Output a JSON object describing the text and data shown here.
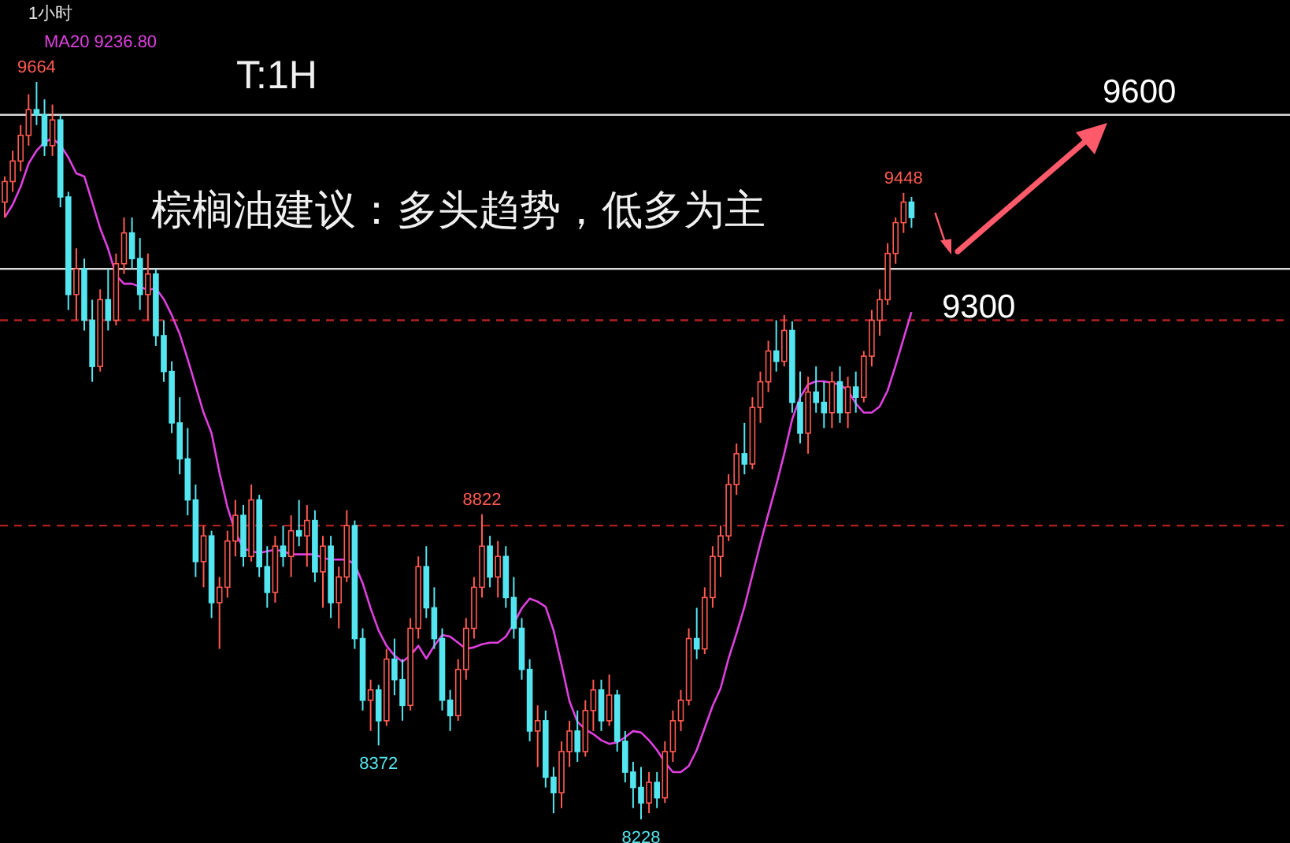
{
  "chart_data": {
    "type": "candlestick",
    "title": "T:1H",
    "subtitle": "棕榈油建议：多头趋势，低多为主",
    "categories": [
      null,
      null,
      null,
      null,
      null,
      null,
      null,
      null,
      null,
      null,
      null,
      null,
      null,
      null,
      null,
      null,
      null,
      null,
      null,
      null,
      null,
      null,
      null,
      null,
      null,
      null,
      null,
      null,
      null,
      null,
      null,
      null,
      null,
      null,
      null,
      null,
      null,
      null,
      null,
      null,
      null,
      null,
      null,
      null,
      null,
      null,
      null,
      null,
      null,
      null,
      null,
      null,
      null,
      null,
      null,
      null,
      null,
      null,
      null,
      null,
      null,
      null,
      null,
      null,
      null,
      null,
      null,
      null,
      null,
      null,
      null,
      null,
      null,
      null,
      null,
      null,
      null,
      null,
      null,
      null,
      null,
      null,
      null,
      null,
      null,
      null,
      null,
      null,
      null,
      null,
      null,
      null,
      null,
      null,
      null,
      null,
      null,
      null,
      null,
      null,
      null,
      null,
      null,
      null,
      null,
      null,
      null,
      null,
      null,
      null,
      null,
      null,
      null,
      null,
      null
    ],
    "ohlc": [
      [
        9430,
        9480,
        9400,
        9470
      ],
      [
        9470,
        9530,
        9450,
        9510
      ],
      [
        9510,
        9580,
        9490,
        9560
      ],
      [
        9560,
        9640,
        9540,
        9610
      ],
      [
        9610,
        9664,
        9580,
        9600
      ],
      [
        9600,
        9630,
        9520,
        9540
      ],
      [
        9540,
        9620,
        9520,
        9590
      ],
      [
        9590,
        9600,
        9420,
        9440
      ],
      [
        9440,
        9450,
        9220,
        9250
      ],
      [
        9250,
        9340,
        9200,
        9300
      ],
      [
        9300,
        9320,
        9180,
        9200
      ],
      [
        9200,
        9240,
        9080,
        9110
      ],
      [
        9110,
        9260,
        9100,
        9240
      ],
      [
        9240,
        9300,
        9180,
        9200
      ],
      [
        9200,
        9330,
        9190,
        9310
      ],
      [
        9310,
        9400,
        9290,
        9370
      ],
      [
        9370,
        9400,
        9300,
        9320
      ],
      [
        9320,
        9360,
        9220,
        9250
      ],
      [
        9250,
        9330,
        9200,
        9290
      ],
      [
        9290,
        9300,
        9150,
        9170
      ],
      [
        9170,
        9200,
        9080,
        9100
      ],
      [
        9100,
        9120,
        8980,
        9000
      ],
      [
        9000,
        9050,
        8900,
        8930
      ],
      [
        8930,
        8990,
        8820,
        8850
      ],
      [
        8850,
        8880,
        8700,
        8730
      ],
      [
        8730,
        8800,
        8680,
        8780
      ],
      [
        8780,
        8790,
        8620,
        8650
      ],
      [
        8650,
        8700,
        8560,
        8680
      ],
      [
        8680,
        8790,
        8660,
        8770
      ],
      [
        8770,
        8850,
        8740,
        8820
      ],
      [
        8820,
        8840,
        8720,
        8740
      ],
      [
        8740,
        8880,
        8730,
        8850
      ],
      [
        8850,
        8860,
        8700,
        8720
      ],
      [
        8720,
        8760,
        8640,
        8670
      ],
      [
        8670,
        8780,
        8650,
        8760
      ],
      [
        8760,
        8800,
        8720,
        8740
      ],
      [
        8740,
        8820,
        8700,
        8790
      ],
      [
        8790,
        8850,
        8760,
        8780
      ],
      [
        8780,
        8840,
        8720,
        8810
      ],
      [
        8810,
        8830,
        8690,
        8710
      ],
      [
        8710,
        8780,
        8640,
        8760
      ],
      [
        8760,
        8780,
        8620,
        8650
      ],
      [
        8650,
        8720,
        8600,
        8700
      ],
      [
        8700,
        8830,
        8690,
        8800
      ],
      [
        8800,
        8810,
        8560,
        8580
      ],
      [
        8580,
        8600,
        8440,
        8460
      ],
      [
        8460,
        8500,
        8400,
        8480
      ],
      [
        8480,
        8490,
        8372,
        8420
      ],
      [
        8420,
        8560,
        8410,
        8540
      ],
      [
        8540,
        8580,
        8470,
        8500
      ],
      [
        8500,
        8540,
        8420,
        8450
      ],
      [
        8450,
        8620,
        8440,
        8600
      ],
      [
        8600,
        8740,
        8580,
        8720
      ],
      [
        8720,
        8760,
        8620,
        8640
      ],
      [
        8640,
        8680,
        8560,
        8580
      ],
      [
        8580,
        8600,
        8440,
        8460
      ],
      [
        8460,
        8480,
        8400,
        8430
      ],
      [
        8430,
        8540,
        8420,
        8520
      ],
      [
        8520,
        8620,
        8500,
        8600
      ],
      [
        8600,
        8700,
        8580,
        8680
      ],
      [
        8680,
        8822,
        8660,
        8760
      ],
      [
        8760,
        8780,
        8680,
        8700
      ],
      [
        8700,
        8770,
        8660,
        8740
      ],
      [
        8740,
        8760,
        8640,
        8660
      ],
      [
        8660,
        8700,
        8580,
        8600
      ],
      [
        8600,
        8620,
        8500,
        8520
      ],
      [
        8520,
        8540,
        8380,
        8400
      ],
      [
        8400,
        8450,
        8330,
        8420
      ],
      [
        8420,
        8440,
        8290,
        8310
      ],
      [
        8310,
        8330,
        8240,
        8280
      ],
      [
        8280,
        8380,
        8250,
        8360
      ],
      [
        8360,
        8420,
        8330,
        8400
      ],
      [
        8400,
        8440,
        8340,
        8360
      ],
      [
        8360,
        8460,
        8350,
        8440
      ],
      [
        8440,
        8500,
        8400,
        8480
      ],
      [
        8480,
        8500,
        8400,
        8420
      ],
      [
        8420,
        8510,
        8410,
        8470
      ],
      [
        8470,
        8480,
        8360,
        8380
      ],
      [
        8380,
        8400,
        8300,
        8320
      ],
      [
        8320,
        8340,
        8250,
        8290
      ],
      [
        8290,
        8330,
        8228,
        8260
      ],
      [
        8260,
        8320,
        8240,
        8300
      ],
      [
        8300,
        8320,
        8250,
        8270
      ],
      [
        8270,
        8380,
        8260,
        8360
      ],
      [
        8360,
        8440,
        8340,
        8420
      ],
      [
        8420,
        8480,
        8400,
        8460
      ],
      [
        8460,
        8600,
        8450,
        8580
      ],
      [
        8580,
        8640,
        8540,
        8560
      ],
      [
        8560,
        8680,
        8550,
        8660
      ],
      [
        8660,
        8760,
        8640,
        8740
      ],
      [
        8740,
        8800,
        8700,
        8780
      ],
      [
        8780,
        8900,
        8770,
        8880
      ],
      [
        8880,
        8960,
        8860,
        8940
      ],
      [
        8940,
        9000,
        8900,
        8920
      ],
      [
        8920,
        9050,
        8910,
        9030
      ],
      [
        9030,
        9100,
        9000,
        9080
      ],
      [
        9080,
        9160,
        9060,
        9140
      ],
      [
        9140,
        9200,
        9100,
        9120
      ],
      [
        9120,
        9210,
        9110,
        9180
      ],
      [
        9180,
        9198,
        9020,
        9040
      ],
      [
        9040,
        9100,
        8960,
        8980
      ],
      [
        8980,
        9090,
        8940,
        9060
      ],
      [
        9060,
        9110,
        9020,
        9040
      ],
      [
        9040,
        9080,
        8990,
        9020
      ],
      [
        9020,
        9100,
        8990,
        9080
      ],
      [
        9080,
        9110,
        9000,
        9020
      ],
      [
        9020,
        9090,
        8990,
        9070
      ],
      [
        9070,
        9100,
        9020,
        9050
      ],
      [
        9050,
        9140,
        9040,
        9130
      ],
      [
        9130,
        9220,
        9110,
        9200
      ],
      [
        9200,
        9260,
        9170,
        9240
      ],
      [
        9240,
        9350,
        9230,
        9330
      ],
      [
        9330,
        9400,
        9310,
        9390
      ],
      [
        9390,
        9448,
        9370,
        9430
      ],
      [
        9430,
        9440,
        9380,
        9400
      ]
    ],
    "series": [
      {
        "name": "MA20 9236.80",
        "type": "line",
        "color": "#e040e0",
        "values": [
          9400,
          9425,
          9460,
          9505,
          9530,
          9547,
          9554,
          9541,
          9517,
          9486,
          9480,
          9430,
          9379,
          9339,
          9287,
          9271,
          9271,
          9265,
          9259,
          9262,
          9241,
          9210,
          9173,
          9124,
          9072,
          9020,
          8980,
          8903,
          8836,
          8787,
          8756,
          8750,
          8747,
          8750,
          8753,
          8750,
          8744,
          8744,
          8744,
          8744,
          8737,
          8734,
          8734,
          8734,
          8725,
          8688,
          8639,
          8596,
          8566,
          8547,
          8535,
          8547,
          8566,
          8541,
          8566,
          8587,
          8584,
          8572,
          8560,
          8563,
          8569,
          8572,
          8572,
          8584,
          8609,
          8639,
          8658,
          8652,
          8642,
          8596,
          8529,
          8458,
          8418,
          8403,
          8394,
          8382,
          8375,
          8378,
          8388,
          8400,
          8397,
          8382,
          8363,
          8339,
          8320,
          8320,
          8332,
          8363,
          8406,
          8449,
          8483,
          8541,
          8590,
          8642,
          8704,
          8765,
          8823,
          8879,
          8940,
          9007,
          9050,
          9075,
          9081,
          9081,
          9078,
          9075,
          9063,
          9038,
          9020,
          9020,
          9032,
          9063,
          9112,
          9164,
          9216
        ]
      }
    ],
    "ref_lines": [
      {
        "axis": "y",
        "value": 9600,
        "label": "9600",
        "color": "#d8d8d8",
        "line_style": "solid"
      },
      {
        "axis": "y",
        "value": 9300,
        "label": "9300",
        "color": "#d8d8d8",
        "line_style": "solid"
      },
      {
        "axis": "y",
        "value": 9200,
        "color": "#b02020",
        "line_style": "dashed"
      },
      {
        "axis": "y",
        "value": 8800,
        "color": "#b02020",
        "line_style": "dashed"
      }
    ],
    "annotations": [
      "1小时",
      {
        "text": "9664",
        "y": 9664
      },
      {
        "text": "9448",
        "y": 9448
      },
      {
        "text": "8822",
        "y": 8822
      },
      {
        "text": "8372",
        "y": 8372
      },
      {
        "text": "8228",
        "y": 8228
      }
    ],
    "legend": "top"
  }
}
